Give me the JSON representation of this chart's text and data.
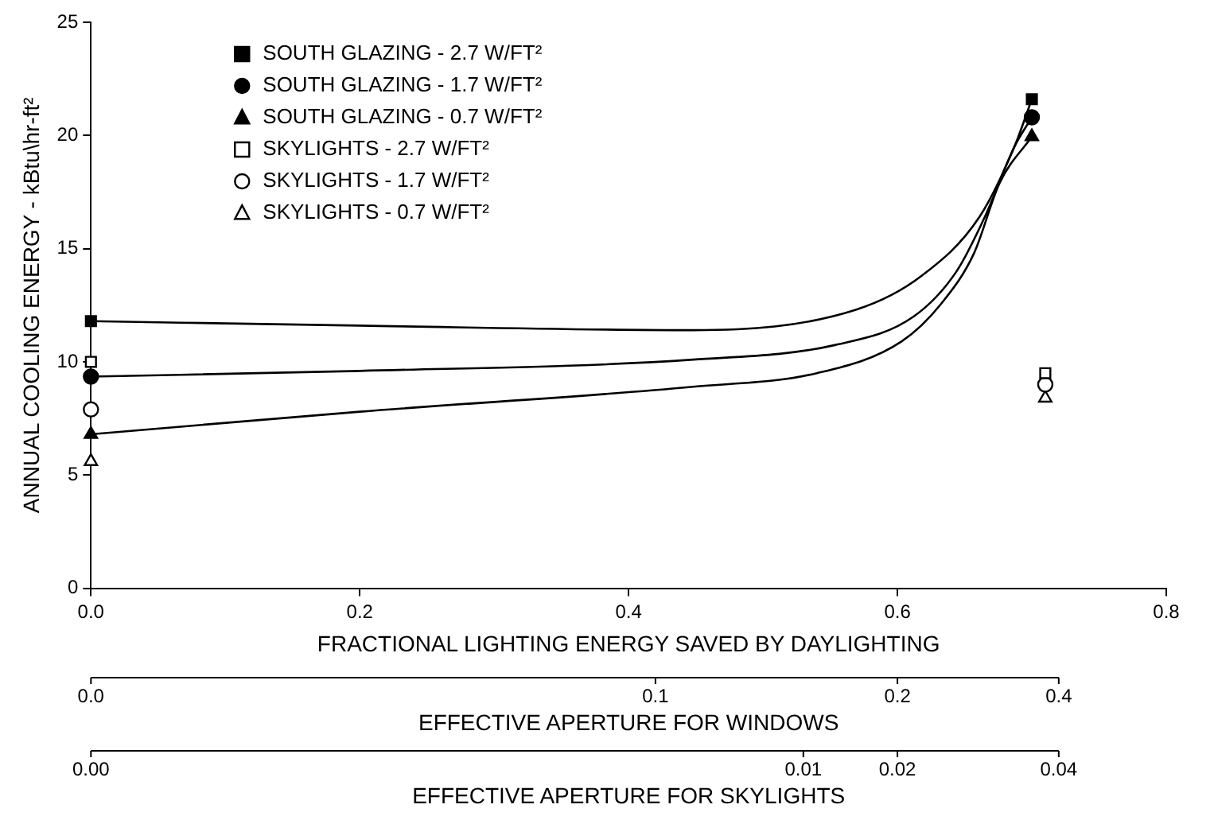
{
  "chart_data": {
    "type": "line",
    "xlabel": "FRACTIONAL LIGHTING ENERGY SAVED BY DAYLIGHTING",
    "ylabel": "ANNUAL COOLING ENERGY - kBtu\\hr-ft²",
    "xlim": [
      0,
      0.8
    ],
    "xticks": [
      {
        "value": 0,
        "label": "0.0"
      },
      0.2,
      0.4,
      0.6,
      0.8
    ],
    "ylim": [
      0,
      25
    ],
    "yticks": [
      0,
      5,
      10,
      15,
      20,
      25
    ],
    "annotations": [
      "EFFECTIVE APERTURE FOR WINDOWS",
      "0.0",
      "0.1",
      "0.2",
      "0.4",
      "EFFECTIVE APERTURE FOR SKYLIGHTS",
      "0.00",
      "0.01",
      "0.02",
      "0.04"
    ],
    "grid": false,
    "legend": "top left",
    "series": [
      {
        "color": "#000000",
        "marker": "none",
        "x": [
          0,
          0.2,
          0.448,
          0.569,
          0.618,
          0.661,
          0.687,
          0.7
        ],
        "values": [
          11.8,
          11.6,
          11.4,
          12.3,
          13.8,
          16.4,
          19.5,
          21.6
        ]
      },
      {
        "color": "#000000",
        "marker": "none",
        "x": [
          0,
          0.2,
          0.448,
          0.554,
          0.612,
          0.644,
          0.665,
          0.687,
          0.7
        ],
        "values": [
          9.35,
          9.6,
          10.1,
          10.75,
          12.0,
          14.0,
          16.4,
          19.5,
          20.8
        ]
      },
      {
        "color": "#000000",
        "marker": "none",
        "x": [
          0,
          0.2,
          0.448,
          0.54,
          0.603,
          0.633,
          0.657,
          0.676,
          0.7
        ],
        "values": [
          6.8,
          7.8,
          8.9,
          9.5,
          10.9,
          12.6,
          14.8,
          17.9,
          19.95
        ]
      },
      {
        "type": "scatter",
        "name": "SOUTH GLAZING - 2.7 W/FT²",
        "color": "#000000",
        "marker": "square",
        "x": [
          0,
          0.7
        ],
        "values": [
          11.8,
          21.6
        ]
      },
      {
        "type": "scatter",
        "name": "SOUTH GLAZING - 1.7 W/FT²",
        "color": "#000000",
        "marker": "circle",
        "x": [
          0,
          0.7
        ],
        "values": [
          9.35,
          20.8
        ]
      },
      {
        "type": "scatter",
        "name": "SOUTH GLAZING - 0.7 W/FT²",
        "color": "#000000",
        "marker": "triangle",
        "x": [
          0,
          0.7
        ],
        "values": [
          6.8,
          19.95
        ]
      },
      {
        "type": "scatter",
        "name": "SKYLIGHTS - 2.7 W/FT²",
        "color": "#ffffff",
        "marker": "square",
        "x": [
          0,
          0.71
        ],
        "values": [
          10.0,
          9.5
        ]
      },
      {
        "type": "scatter",
        "name": "SKYLIGHTS - 1.7 W/FT²",
        "color": "#ffffff",
        "marker": "circle",
        "x": [
          0,
          0.71
        ],
        "values": [
          7.9,
          9.0
        ]
      },
      {
        "type": "scatter",
        "name": "SKYLIGHTS - 0.7 W/FT²",
        "color": "#ffffff",
        "marker": "triangle",
        "x": [
          0,
          0.71
        ],
        "values": [
          5.6,
          8.4
        ]
      }
    ]
  }
}
